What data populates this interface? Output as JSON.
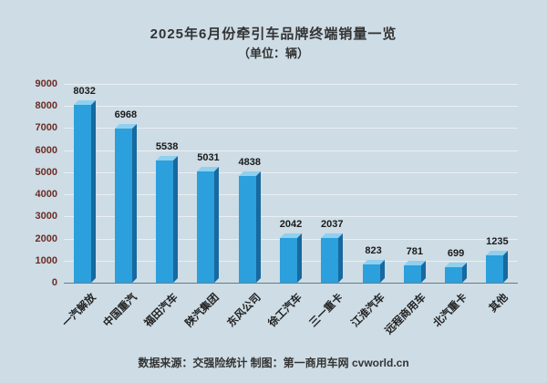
{
  "chart_data": {
    "type": "bar",
    "title": "2025年6月份牵引车品牌终端销量一览",
    "subtitle": "（单位：辆）",
    "categories": [
      "一汽解放",
      "中国重汽",
      "福田汽车",
      "陕汽集团",
      "东风公司",
      "徐工汽车",
      "三一重卡",
      "江淮汽车",
      "远程商用车",
      "北汽重卡",
      "其他"
    ],
    "values": [
      8032,
      6968,
      5538,
      5031,
      4838,
      2042,
      2037,
      823,
      781,
      699,
      1235
    ],
    "xlabel": "",
    "ylabel": "",
    "ylim": [
      0,
      9000
    ],
    "ytick_interval": 1000,
    "grid": true,
    "legend": false,
    "footer": "数据来源：交强险统计  制图：第一商用车网 cvworld.cn",
    "colors": {
      "background": "#cddce5",
      "bar_front": "#2ba0dc",
      "bar_side": "#17699f",
      "bar_top": "#8fd0ef",
      "axis_label": "#6d2c23",
      "value_label": "#1a1a1a",
      "gridline": "#e9f0f4"
    }
  }
}
